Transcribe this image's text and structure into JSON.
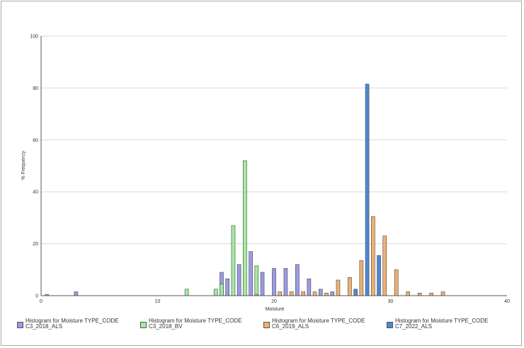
{
  "chart_data": {
    "type": "bar",
    "title": "",
    "xlabel": "Moisture",
    "ylabel": "% Frequency",
    "xlim": [
      0,
      40
    ],
    "ylim": [
      0,
      100
    ],
    "xticks": [
      0,
      10,
      20,
      30,
      40
    ],
    "yticks": [
      0,
      20,
      40,
      60,
      80,
      100
    ],
    "grid": true,
    "legend_position": "bottom",
    "series": [
      {
        "name_line1": "Histogram for Moisture TYPE_CODE",
        "name_line2": "C3_2018_ALS",
        "color": "#9a9ae8",
        "points": [
          {
            "x": 3,
            "y": 1.5
          },
          {
            "x": 15,
            "y": 1.5
          },
          {
            "x": 15.5,
            "y": 9
          },
          {
            "x": 16,
            "y": 6.5
          },
          {
            "x": 17,
            "y": 12
          },
          {
            "x": 18,
            "y": 17
          },
          {
            "x": 19,
            "y": 9
          },
          {
            "x": 20,
            "y": 10.5
          },
          {
            "x": 21,
            "y": 10.5
          },
          {
            "x": 22,
            "y": 12
          },
          {
            "x": 23,
            "y": 6.5
          },
          {
            "x": 24,
            "y": 2.5
          },
          {
            "x": 25,
            "y": 1.5
          }
        ]
      },
      {
        "name_line1": "Histogram for Moisture TYPE_CODE",
        "name_line2": "C3_2018_BV",
        "color": "#a0eca0",
        "points": [
          {
            "x": 12.5,
            "y": 2.5
          },
          {
            "x": 15,
            "y": 2.5
          },
          {
            "x": 15.5,
            "y": 4.5
          },
          {
            "x": 16.5,
            "y": 27
          },
          {
            "x": 17.5,
            "y": 52
          },
          {
            "x": 18.5,
            "y": 11.5
          }
        ]
      },
      {
        "name_line1": "Histogram for Moisture TYPE_CODE",
        "name_line2": "C6_2019_ALS",
        "color": "#f0b070",
        "points": [
          {
            "x": 0.5,
            "y": 0.5
          },
          {
            "x": 18.5,
            "y": 0.5
          },
          {
            "x": 20.5,
            "y": 1.5
          },
          {
            "x": 21.5,
            "y": 1.5
          },
          {
            "x": 22.5,
            "y": 1.5
          },
          {
            "x": 23.5,
            "y": 1.5
          },
          {
            "x": 24.5,
            "y": 1
          },
          {
            "x": 25.5,
            "y": 6
          },
          {
            "x": 26.5,
            "y": 7
          },
          {
            "x": 27.5,
            "y": 13.5
          },
          {
            "x": 28.5,
            "y": 30.5
          },
          {
            "x": 29.5,
            "y": 23
          },
          {
            "x": 30.5,
            "y": 10
          },
          {
            "x": 31.5,
            "y": 1.5
          },
          {
            "x": 32.5,
            "y": 1
          },
          {
            "x": 33.5,
            "y": 1
          },
          {
            "x": 34.5,
            "y": 1.5
          }
        ]
      },
      {
        "name_line1": "Histogram for Moisture TYPE_CODE",
        "name_line2": "C7_2022_ALS",
        "color": "#4a88d8",
        "points": [
          {
            "x": 27,
            "y": 2.5
          },
          {
            "x": 28,
            "y": 81.5
          },
          {
            "x": 29,
            "y": 15.5
          }
        ]
      }
    ]
  }
}
